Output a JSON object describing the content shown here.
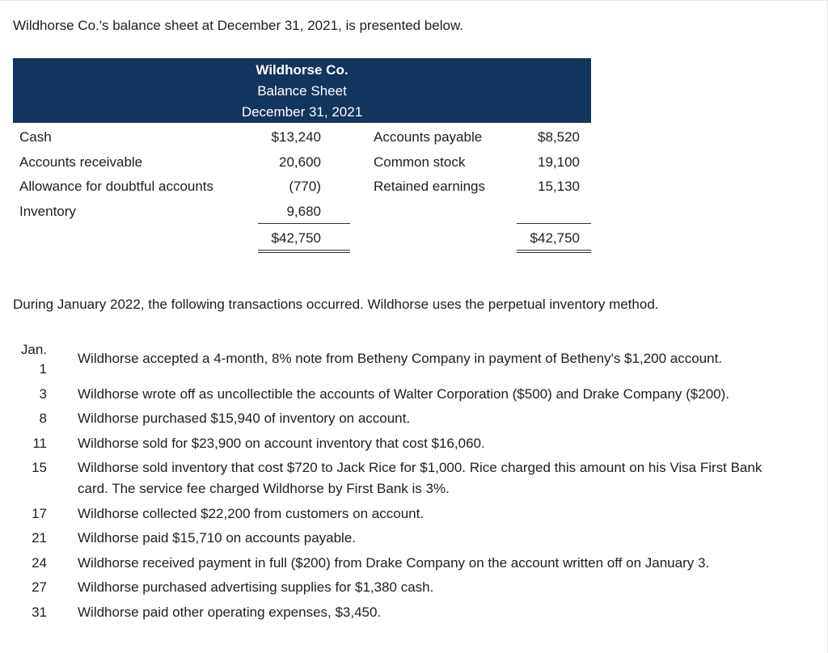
{
  "intro": "Wildhorse Co.'s balance sheet at December 31, 2021, is presented below.",
  "balance_sheet": {
    "company": "Wildhorse Co.",
    "statement": "Balance Sheet",
    "date": "December 31, 2021",
    "assets": [
      {
        "label": "Cash",
        "amount": "$13,240"
      },
      {
        "label": "Accounts receivable",
        "amount": "20,600"
      },
      {
        "label": "Allowance for doubtful accounts",
        "amount": "(770)"
      },
      {
        "label": "Inventory",
        "amount": "9,680"
      }
    ],
    "assets_total": "$42,750",
    "liabilities_equity": [
      {
        "label": "Accounts payable",
        "amount": "$8,520"
      },
      {
        "label": "Common stock",
        "amount": "19,100"
      },
      {
        "label": "Retained earnings",
        "amount": "15,130"
      }
    ],
    "liabilities_equity_total": "$42,750"
  },
  "transactions_intro": "During January 2022, the following transactions occurred. Wildhorse uses the perpetual inventory method.",
  "month": "Jan.",
  "transactions": [
    {
      "day": "1",
      "text": "Wildhorse accepted a 4-month, 8% note from Betheny Company in payment of Betheny's $1,200 account."
    },
    {
      "day": "3",
      "text": "Wildhorse wrote off as uncollectible the accounts of Walter Corporation ($500) and Drake Company ($200)."
    },
    {
      "day": "8",
      "text": "Wildhorse purchased $15,940 of inventory on account."
    },
    {
      "day": "11",
      "text": "Wildhorse sold for $23,900 on account inventory that cost $16,060."
    },
    {
      "day": "15",
      "text": "Wildhorse sold inventory that cost $720 to Jack Rice for $1,000. Rice charged this amount on his Visa First Bank card. The service fee charged Wildhorse by First Bank is 3%."
    },
    {
      "day": "17",
      "text": "Wildhorse collected $22,200 from customers on account."
    },
    {
      "day": "21",
      "text": "Wildhorse paid $15,710 on accounts payable."
    },
    {
      "day": "24",
      "text": "Wildhorse received payment in full ($200) from Drake Company on the account written off on January 3."
    },
    {
      "day": "27",
      "text": "Wildhorse purchased advertising supplies for $1,380 cash."
    },
    {
      "day": "31",
      "text": "Wildhorse paid other operating expenses, $3,450."
    }
  ]
}
